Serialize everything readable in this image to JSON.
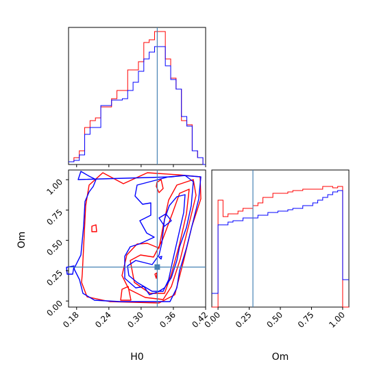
{
  "chart_data": {
    "type": "corner",
    "parameters": [
      "H0",
      "Om"
    ],
    "truth": {
      "H0": 0.33,
      "Om": 0.28
    },
    "truth_color": "#4682b4",
    "series": [
      {
        "color": "#ff0000"
      },
      {
        "color": "#0000ff"
      }
    ],
    "panels": [
      {
        "id": "hist-h0",
        "type": "step-histogram",
        "x_param": "H0",
        "xlim": [
          0.165,
          0.42
        ],
        "ylim": [
          0,
          1.0
        ],
        "bin_edges": [
          0.165,
          0.175,
          0.185,
          0.195,
          0.205,
          0.215,
          0.225,
          0.235,
          0.245,
          0.255,
          0.265,
          0.275,
          0.285,
          0.295,
          0.305,
          0.315,
          0.325,
          0.335,
          0.345,
          0.355,
          0.365,
          0.375,
          0.385,
          0.395,
          0.405,
          0.415,
          0.42
        ],
        "series_values": [
          [
            0.02,
            0.05,
            0.1,
            0.27,
            0.32,
            0.34,
            0.42,
            0.42,
            0.48,
            0.54,
            0.54,
            0.69,
            0.69,
            0.75,
            0.89,
            0.91,
            0.97,
            0.97,
            0.77,
            0.63,
            0.55,
            0.32,
            0.29,
            0.1,
            0.05,
            0.0
          ],
          [
            0.02,
            0.03,
            0.07,
            0.22,
            0.27,
            0.27,
            0.43,
            0.43,
            0.47,
            0.47,
            0.48,
            0.54,
            0.6,
            0.68,
            0.77,
            0.82,
            0.86,
            0.86,
            0.72,
            0.62,
            0.55,
            0.35,
            0.28,
            0.1,
            0.05,
            0.0
          ]
        ]
      },
      {
        "id": "hist-om",
        "type": "step-histogram",
        "x_param": "Om",
        "xlim": [
          -0.05,
          1.05
        ],
        "ylim": [
          0,
          1.0
        ],
        "bin_edges": [
          -0.05,
          0.0,
          0.04,
          0.08,
          0.12,
          0.16,
          0.2,
          0.24,
          0.28,
          0.32,
          0.36,
          0.4,
          0.44,
          0.48,
          0.52,
          0.56,
          0.6,
          0.64,
          0.68,
          0.72,
          0.76,
          0.8,
          0.84,
          0.88,
          0.92,
          0.96,
          1.0,
          1.05
        ],
        "series_values": [
          [
            0.0,
            0.78,
            0.66,
            0.68,
            0.68,
            0.7,
            0.72,
            0.72,
            0.74,
            0.76,
            0.8,
            0.8,
            0.83,
            0.83,
            0.83,
            0.84,
            0.85,
            0.85,
            0.86,
            0.86,
            0.86,
            0.86,
            0.88,
            0.88,
            0.87,
            0.88,
            0.0
          ],
          [
            0.1,
            0.6,
            0.6,
            0.62,
            0.63,
            0.63,
            0.65,
            0.65,
            0.65,
            0.67,
            0.67,
            0.69,
            0.69,
            0.7,
            0.7,
            0.71,
            0.72,
            0.72,
            0.74,
            0.74,
            0.76,
            0.78,
            0.8,
            0.82,
            0.84,
            0.85,
            0.2
          ]
        ]
      },
      {
        "id": "contour-h0-om",
        "type": "contour",
        "x_param": "H0",
        "y_param": "Om",
        "xlim": [
          0.165,
          0.42
        ],
        "ylim": [
          -0.05,
          1.08
        ],
        "x_ticks": [
          0.18,
          0.24,
          0.3,
          0.36,
          0.42
        ],
        "y_ticks": [
          0.0,
          0.25,
          0.5,
          0.75,
          1.0
        ]
      }
    ],
    "tick_labels": {
      "H0": [
        "0.18",
        "0.24",
        "0.30",
        "0.36",
        "0.42"
      ],
      "Om_y": [
        "0.00",
        "0.25",
        "0.50",
        "0.75",
        "1.00"
      ],
      "Om_x": [
        "0.00",
        "0.25",
        "0.50",
        "0.75",
        "1.00"
      ]
    },
    "xlabel_left": "H0",
    "xlabel_right": "Om",
    "ylabel": "Om"
  }
}
